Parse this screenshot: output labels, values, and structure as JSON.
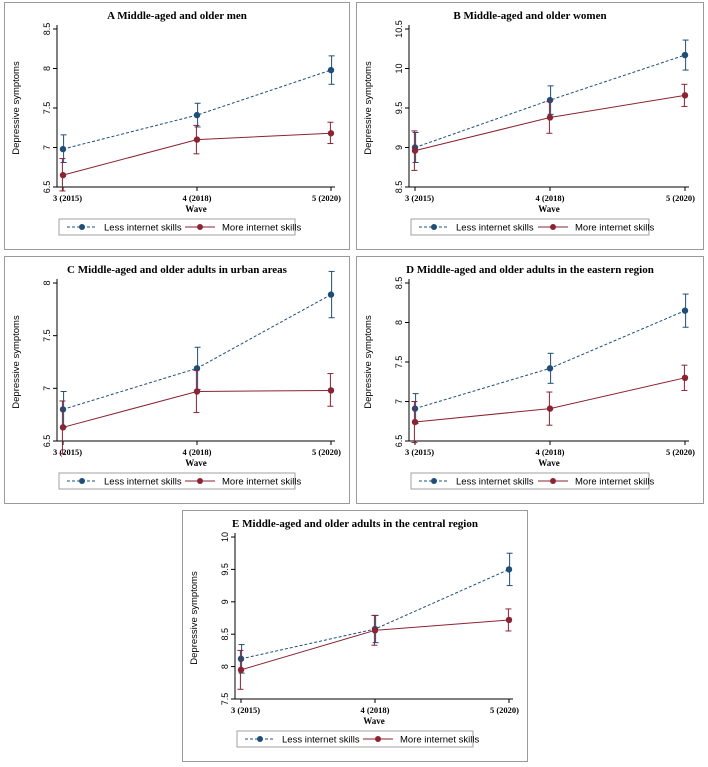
{
  "figure": {
    "series_names": [
      "Less internet skills",
      "More internet skills"
    ],
    "colors": {
      "less": "#1f4e79",
      "more": "#8b2332",
      "axis": "#000000"
    }
  },
  "chart_data": [
    {
      "id": "A",
      "type": "line",
      "title": "A  Middle-aged and older men",
      "xlabel": "Wave",
      "ylabel": "Depressive symptoms",
      "categories": [
        "3 (2015)",
        "4 (2018)",
        "5 (2020)"
      ],
      "ylim": [
        6.5,
        8.5
      ],
      "yticks": [
        "6.5",
        "7",
        "7.5",
        "8",
        "8.5"
      ],
      "series": [
        {
          "name": "Less internet skills",
          "values": [
            6.98,
            7.41,
            7.98
          ],
          "lower": [
            6.81,
            7.26,
            7.8
          ],
          "upper": [
            7.16,
            7.56,
            8.16
          ]
        },
        {
          "name": "More internet skills",
          "values": [
            6.65,
            7.1,
            7.18
          ],
          "lower": [
            6.45,
            6.92,
            7.05
          ],
          "upper": [
            6.86,
            7.28,
            7.32
          ]
        }
      ],
      "legend": [
        "Less internet skills",
        "More internet skills"
      ]
    },
    {
      "id": "B",
      "type": "line",
      "title": "B  Middle-aged and older women",
      "xlabel": "Wave",
      "ylabel": "Depressive symptoms",
      "categories": [
        "3 (2015)",
        "4 (2018)",
        "5 (2020)"
      ],
      "ylim": [
        8.5,
        10.5
      ],
      "yticks": [
        "8.5",
        "9",
        "9.5",
        "10",
        "10.5"
      ],
      "series": [
        {
          "name": "Less internet skills",
          "values": [
            9.0,
            9.6,
            10.17
          ],
          "lower": [
            8.81,
            9.42,
            9.98
          ],
          "upper": [
            9.19,
            9.78,
            10.36
          ]
        },
        {
          "name": "More internet skills",
          "values": [
            8.96,
            9.38,
            9.66
          ],
          "lower": [
            8.71,
            9.18,
            9.52
          ],
          "upper": [
            9.21,
            9.58,
            9.8
          ]
        }
      ],
      "legend": [
        "Less internet skills",
        "More internet skills"
      ]
    },
    {
      "id": "C",
      "type": "line",
      "title": "C  Middle-aged and older adults in urban areas",
      "xlabel": "Wave",
      "ylabel": "Depressive symptoms",
      "categories": [
        "3 (2015)",
        "4 (2018)",
        "5 (2020)"
      ],
      "ylim": [
        6.5,
        8
      ],
      "yticks": [
        "6.5",
        "7",
        "7.5",
        "8"
      ],
      "series": [
        {
          "name": "Less internet skills",
          "values": [
            6.8,
            7.19,
            7.89
          ],
          "lower": [
            6.63,
            6.99,
            7.67
          ],
          "upper": [
            6.97,
            7.39,
            8.11
          ]
        },
        {
          "name": "More internet skills",
          "values": [
            6.63,
            6.97,
            6.98
          ],
          "lower": [
            6.38,
            6.77,
            6.83
          ],
          "upper": [
            6.88,
            7.17,
            7.14
          ]
        }
      ],
      "legend": [
        "Less internet skills",
        "More internet skills"
      ]
    },
    {
      "id": "D",
      "type": "line",
      "title": "D  Middle-aged and older adults in the eastern region",
      "xlabel": "Wave",
      "ylabel": "Depressive symptoms",
      "categories": [
        "3 (2015)",
        "4 (2018)",
        "5 (2020)"
      ],
      "ylim": [
        6.5,
        8.5
      ],
      "yticks": [
        "6.5",
        "7",
        "7.5",
        "8",
        "8.5"
      ],
      "series": [
        {
          "name": "Less internet skills",
          "values": [
            6.91,
            7.42,
            8.15
          ],
          "lower": [
            6.72,
            7.23,
            7.94
          ],
          "upper": [
            7.1,
            7.61,
            8.36
          ]
        },
        {
          "name": "More internet skills",
          "values": [
            6.74,
            6.91,
            7.3
          ],
          "lower": [
            6.48,
            6.7,
            7.14
          ],
          "upper": [
            7.0,
            7.12,
            7.46
          ]
        }
      ],
      "legend": [
        "Less internet skills",
        "More internet skills"
      ]
    },
    {
      "id": "E",
      "type": "line",
      "title": "E  Middle-aged and older adults in the central region",
      "xlabel": "Wave",
      "ylabel": "Depressive symptoms",
      "categories": [
        "3 (2015)",
        "4 (2018)",
        "5 (2020)"
      ],
      "ylim": [
        7.5,
        10
      ],
      "yticks": [
        "7.5",
        "8",
        "8.5",
        "9",
        "9.5",
        "10"
      ],
      "series": [
        {
          "name": "Less internet skills",
          "values": [
            8.12,
            8.58,
            9.5
          ],
          "lower": [
            7.9,
            8.37,
            9.25
          ],
          "upper": [
            8.34,
            8.79,
            9.75
          ]
        },
        {
          "name": "More internet skills",
          "values": [
            7.95,
            8.56,
            8.72
          ],
          "lower": [
            7.65,
            8.33,
            8.55
          ],
          "upper": [
            8.25,
            8.79,
            8.89
          ]
        }
      ],
      "legend": [
        "Less internet skills",
        "More internet skills"
      ]
    }
  ]
}
